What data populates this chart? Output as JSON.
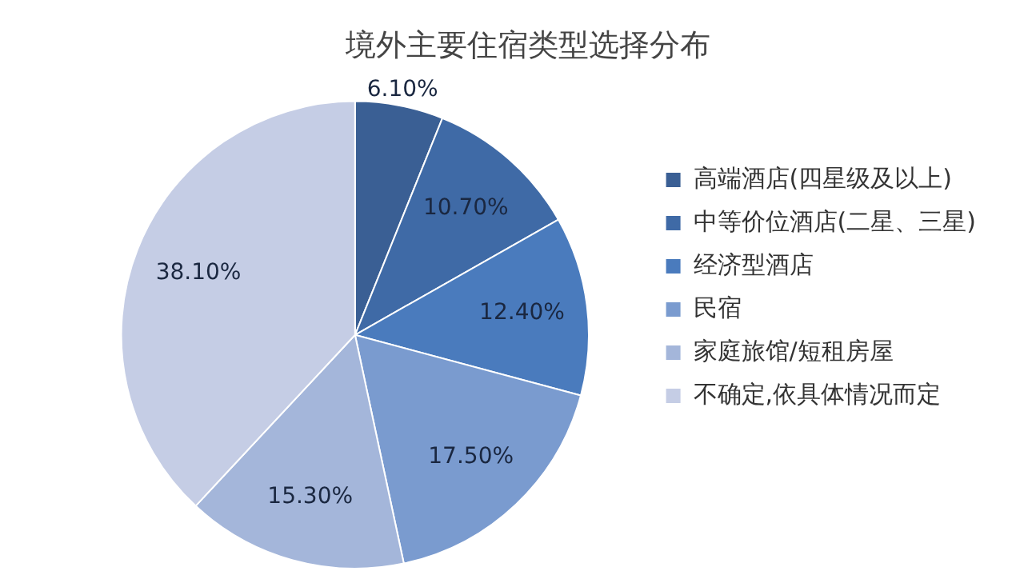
{
  "chart_data": {
    "type": "pie",
    "title": "境外主要住宿类型选择分布",
    "categories": [
      "高端酒店(四星级及以上)",
      "中等价位酒店(二星、三星)",
      "经济型酒店",
      "民宿",
      "家庭旅馆/短租房屋",
      "不确定,依具体情况而定"
    ],
    "values": [
      6.1,
      10.7,
      12.4,
      17.5,
      15.3,
      38.1
    ],
    "value_labels": [
      "6.10%",
      "10.70%",
      "12.40%",
      "17.50%",
      "15.30%",
      "38.10%"
    ],
    "colors": [
      "#3a5f94",
      "#3f6aa6",
      "#4a7bbd",
      "#7a9bcf",
      "#a4b6da",
      "#c5cde5"
    ],
    "legend": "right"
  }
}
